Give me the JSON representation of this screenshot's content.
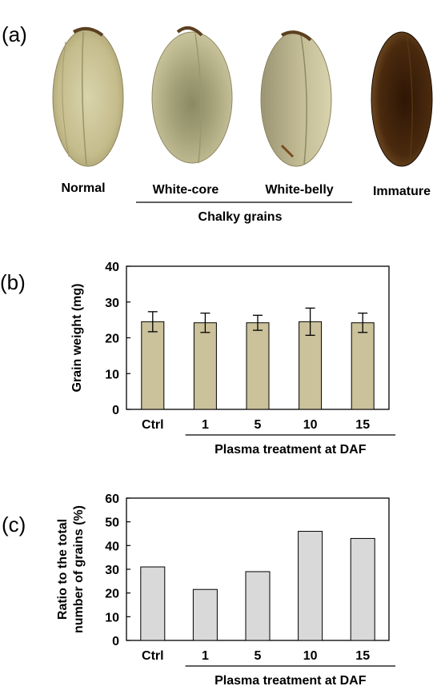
{
  "panels": {
    "a": {
      "label": "(a)",
      "grains": [
        {
          "name": "Normal",
          "tone": "normal"
        },
        {
          "name": "White-core",
          "tone": "white-core"
        },
        {
          "name": "White-belly",
          "tone": "white-belly"
        },
        {
          "name": "Immature",
          "tone": "immature"
        }
      ],
      "group_label": "Chalky grains"
    },
    "b": {
      "label": "(b)"
    },
    "c": {
      "label": "(c)"
    }
  },
  "colors": {
    "bar_b": "#cbc19a",
    "bar_c": "#d9d9d9",
    "stroke": "#000000"
  },
  "chart_data": [
    {
      "type": "bar",
      "panel": "b",
      "categories": [
        "Ctrl",
        "1",
        "5",
        "10",
        "15"
      ],
      "values": [
        24.5,
        24.2,
        24.2,
        24.5,
        24.2
      ],
      "errors": [
        2.8,
        2.7,
        2.1,
        3.8,
        2.7
      ],
      "ylabel": "Grain weight (mg)",
      "xgroup_label": "Plasma treatment at DAF",
      "ylim": [
        0,
        40
      ],
      "yticks": [
        "0",
        "10",
        "20",
        "30",
        "40"
      ]
    },
    {
      "type": "bar",
      "panel": "c",
      "categories": [
        "Ctrl",
        "1",
        "5",
        "10",
        "15"
      ],
      "values": [
        31,
        21.5,
        29,
        46,
        43
      ],
      "ylabel_line1": "Ratio to the total",
      "ylabel_line2": "number of grains (%)",
      "xgroup_label": "Plasma treatment at DAF",
      "ylim": [
        0,
        60
      ],
      "yticks": [
        "0",
        "10",
        "20",
        "30",
        "40",
        "50",
        "60"
      ]
    }
  ]
}
